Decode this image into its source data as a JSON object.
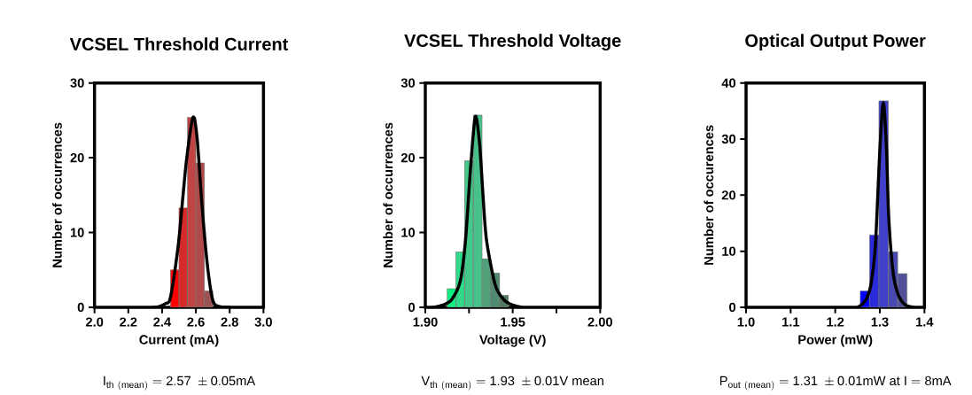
{
  "chart_data": [
    {
      "type": "histogram",
      "title": "VCSEL Threshold Current",
      "xlabel": "Current (mA)",
      "ylabel": "Number of occurrences",
      "annotations": [
        "\\mathrm{I_{th\\ (mean)}=2.57\\ \\pm 0.05mA}"
      ],
      "xlim": [
        2.0,
        3.0
      ],
      "xticks": [
        {
          "value": 2.0,
          "label": "2.0"
        },
        {
          "value": 2.2,
          "label": "2.2"
        },
        {
          "value": 2.4,
          "label": "2.4"
        },
        {
          "value": 2.6,
          "label": "2.6"
        },
        {
          "value": 2.8,
          "label": "2.8"
        },
        {
          "value": 3.0,
          "label": "3.0"
        }
      ],
      "ylim": [
        0,
        30
      ],
      "yticks": [
        0,
        10,
        20,
        30
      ],
      "grid": false,
      "series": [
        {
          "type": "histogram",
          "bins": [
            2.45,
            2.5,
            2.55,
            2.6,
            2.65,
            2.7
          ],
          "values": [
            5.0,
            13.3,
            25.4,
            19.3,
            2.2
          ],
          "colors": [
            "#ff0000",
            "#d42a2a",
            "#c04444",
            "#b04a4a",
            "#9a5252"
          ]
        },
        {
          "type": "line",
          "color": "#000000",
          "x": [
            2.35,
            2.383,
            2.42,
            2.449,
            2.494,
            2.52,
            2.546,
            2.583,
            2.607,
            2.635,
            2.664,
            2.69,
            2.708,
            2.74,
            2.8
          ],
          "values": [
            0,
            0.1,
            0.5,
            1.3,
            8,
            14,
            20,
            25.4,
            22.7,
            14,
            6.5,
            2,
            0.5,
            0.1,
            0
          ]
        }
      ]
    },
    {
      "type": "histogram",
      "title": "VCSEL Threshold Voltage",
      "xlabel": "Voltage (V)",
      "ylabel": "Number of occurrences",
      "annotations": [
        "\\mathrm{V_{th\\ (mean)}=1.93\\ \\pm 0.01V\\ mean}"
      ],
      "xlim": [
        1.9,
        2.0
      ],
      "xticks": [
        {
          "value": 1.9,
          "label": "1.90"
        },
        {
          "value": 1.925,
          "label": null
        },
        {
          "value": 1.95,
          "label": "1.95"
        },
        {
          "value": 1.975,
          "label": null
        },
        {
          "value": 2.0,
          "label": "2.00"
        }
      ],
      "ylim": [
        0,
        30
      ],
      "yticks": [
        0,
        10,
        20,
        30
      ],
      "grid": false,
      "series": [
        {
          "type": "histogram",
          "bins": [
            1.9125,
            1.9175,
            1.9225,
            1.9275,
            1.9325,
            1.9375,
            1.9425,
            1.9475
          ],
          "values": [
            2.5,
            7.4,
            19.6,
            25.7,
            6.5,
            4.6,
            1.6
          ],
          "colors": [
            "#10f080",
            "#30dc8a",
            "#44c88a",
            "#48c08a",
            "#50a07a",
            "#508a70",
            "#50785f"
          ]
        },
        {
          "type": "line",
          "color": "#000000",
          "x": [
            1.905,
            1.91,
            1.915,
            1.92,
            1.923,
            1.926,
            1.9286,
            1.931,
            1.933,
            1.935,
            1.94,
            1.945,
            1.95,
            1.955
          ],
          "values": [
            0,
            0.3,
            1,
            3.5,
            9,
            19,
            25.5,
            22,
            15,
            9,
            3,
            1,
            0.3,
            0
          ]
        }
      ]
    },
    {
      "type": "histogram",
      "title": "Optical Output Power",
      "xlabel": "Power (mW)",
      "ylabel": "Number of occurences",
      "annotations": [
        "\\mathrm{P_{out\\ (mean)}=1.31\\ \\pm 0.01mW\\ at\\ I=8mA}"
      ],
      "xlim": [
        1.0,
        1.4
      ],
      "xticks": [
        {
          "value": 1.0,
          "label": "1.0"
        },
        {
          "value": 1.1,
          "label": "1.1"
        },
        {
          "value": 1.2,
          "label": "1.2"
        },
        {
          "value": 1.3,
          "label": "1.3"
        },
        {
          "value": 1.4,
          "label": "1.4"
        }
      ],
      "ylim": [
        0,
        40
      ],
      "yticks": [
        0,
        10,
        20,
        30,
        40
      ],
      "grid": false,
      "series": [
        {
          "type": "histogram",
          "bins": [
            1.256,
            1.277,
            1.298,
            1.319,
            1.34,
            1.361
          ],
          "values": [
            2.9,
            12.9,
            36.8,
            9.9,
            6.0
          ],
          "colors": [
            "#0000ff",
            "#2a2ad8",
            "#4040c8",
            "#4848b0",
            "#505098"
          ]
        },
        {
          "type": "line",
          "color": "#000000",
          "x": [
            1.25,
            1.26,
            1.27,
            1.28,
            1.29,
            1.3,
            1.308,
            1.315,
            1.32,
            1.33,
            1.34,
            1.35,
            1.36,
            1.375
          ],
          "values": [
            0,
            0.5,
            1.5,
            4,
            11,
            28,
            36.5,
            28,
            16,
            6,
            2.5,
            1,
            0.3,
            0
          ]
        }
      ]
    }
  ]
}
